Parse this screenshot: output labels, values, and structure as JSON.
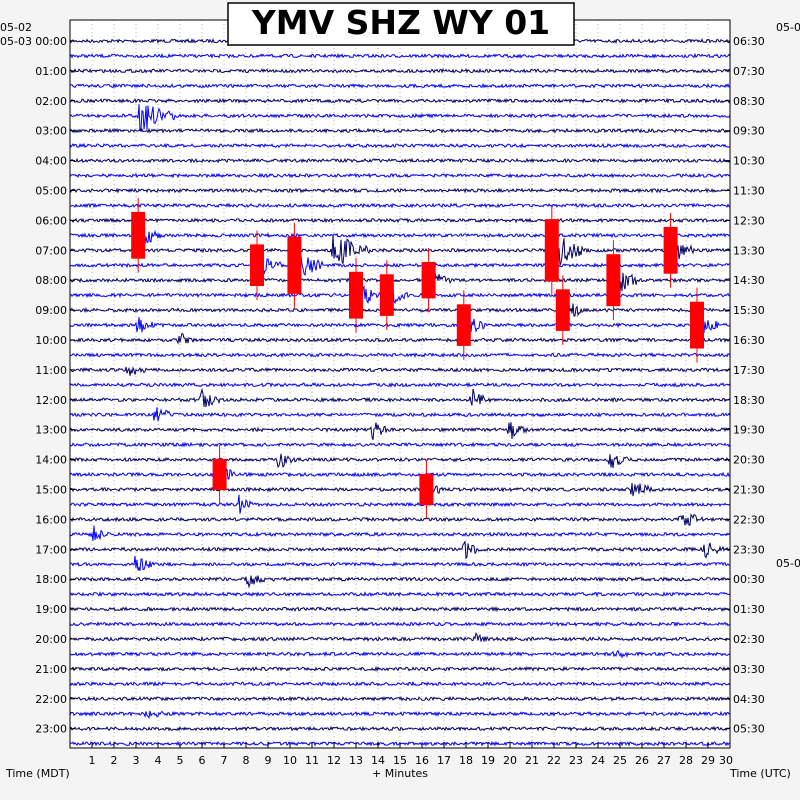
{
  "chart_data": {
    "type": "line",
    "title": "YMV SHZ WY 01",
    "xlabel": "+ Minutes",
    "ylabel_left": "Time (MDT)",
    "ylabel_right": "Time (UTC)",
    "left_date_top": "05-02",
    "left_date": "05-03",
    "right_date_top": "05-0",
    "right_date_mid": "05-0",
    "x_ticks": [
      "1",
      "2",
      "3",
      "4",
      "5",
      "6",
      "7",
      "8",
      "9",
      "10",
      "11",
      "12",
      "13",
      "14",
      "15",
      "16",
      "17",
      "18",
      "19",
      "20",
      "21",
      "22",
      "23",
      "24",
      "25",
      "26",
      "27",
      "28",
      "29",
      "30"
    ],
    "xlim": [
      0,
      30
    ],
    "left_hours": [
      "00:00",
      "01:00",
      "02:00",
      "03:00",
      "04:00",
      "05:00",
      "06:00",
      "07:00",
      "08:00",
      "09:00",
      "10:00",
      "11:00",
      "12:00",
      "13:00",
      "14:00",
      "15:00",
      "16:00",
      "17:00",
      "18:00",
      "19:00",
      "20:00",
      "21:00",
      "22:00",
      "23:00"
    ],
    "right_hours": [
      "06:30",
      "07:30",
      "08:30",
      "09:30",
      "10:30",
      "11:30",
      "12:30",
      "13:30",
      "14:30",
      "15:30",
      "16:30",
      "17:30",
      "18:30",
      "19:30",
      "20:30",
      "21:30",
      "22:30",
      "23:30",
      "00:30",
      "01:30",
      "02:30",
      "03:30",
      "04:30",
      "05:30"
    ],
    "trace_lines_per_hour": 2,
    "trace_colors": [
      "#000066",
      "#0000ff"
    ],
    "clip_color": "#ff0000",
    "grid": "dotted",
    "events": [
      {
        "line": 5,
        "minute": 3.2,
        "amp": 20,
        "dur": 1.6
      },
      {
        "line": 13,
        "minute": 3.1,
        "amp": 18,
        "dur": 1.0,
        "clip": true
      },
      {
        "line": 15,
        "minute": 8.5,
        "amp": 16,
        "dur": 1.1,
        "clip": true
      },
      {
        "line": 15,
        "minute": 10.2,
        "amp": 22,
        "dur": 1.3,
        "clip": true
      },
      {
        "line": 14,
        "minute": 12.0,
        "amp": 22,
        "dur": 1.6
      },
      {
        "line": 17,
        "minute": 13.0,
        "amp": 18,
        "dur": 1.2,
        "clip": true
      },
      {
        "line": 17,
        "minute": 14.4,
        "amp": 16,
        "dur": 1.0,
        "clip": true
      },
      {
        "line": 16,
        "minute": 16.3,
        "amp": 14,
        "dur": 1.0,
        "clip": true
      },
      {
        "line": 19,
        "minute": 17.9,
        "amp": 16,
        "dur": 1.0,
        "clip": true
      },
      {
        "line": 14,
        "minute": 21.9,
        "amp": 24,
        "dur": 1.6,
        "clip": true
      },
      {
        "line": 18,
        "minute": 22.4,
        "amp": 16,
        "dur": 1.0,
        "clip": true
      },
      {
        "line": 16,
        "minute": 24.7,
        "amp": 20,
        "dur": 1.2,
        "clip": true
      },
      {
        "line": 14,
        "minute": 27.3,
        "amp": 18,
        "dur": 1.1,
        "clip": true
      },
      {
        "line": 19,
        "minute": 28.5,
        "amp": 18,
        "dur": 1.0,
        "clip": true
      },
      {
        "line": 19,
        "minute": 3.1,
        "amp": 10,
        "dur": 0.8
      },
      {
        "line": 20,
        "minute": 5.0,
        "amp": 8,
        "dur": 0.6
      },
      {
        "line": 22,
        "minute": 2.6,
        "amp": 10,
        "dur": 0.8
      },
      {
        "line": 24,
        "minute": 6.0,
        "amp": 12,
        "dur": 0.8
      },
      {
        "line": 25,
        "minute": 3.9,
        "amp": 10,
        "dur": 0.8
      },
      {
        "line": 26,
        "minute": 13.8,
        "amp": 12,
        "dur": 0.6
      },
      {
        "line": 28,
        "minute": 9.5,
        "amp": 10,
        "dur": 0.8
      },
      {
        "line": 29,
        "minute": 6.8,
        "amp": 12,
        "dur": 0.8,
        "clip": true
      },
      {
        "line": 30,
        "minute": 16.2,
        "amp": 12,
        "dur": 0.8,
        "clip": true
      },
      {
        "line": 31,
        "minute": 7.7,
        "amp": 10,
        "dur": 0.6
      },
      {
        "line": 33,
        "minute": 1.1,
        "amp": 10,
        "dur": 0.8
      },
      {
        "line": 34,
        "minute": 17.9,
        "amp": 10,
        "dur": 0.8
      },
      {
        "line": 35,
        "minute": 3.0,
        "amp": 10,
        "dur": 0.8
      },
      {
        "line": 36,
        "minute": 8.1,
        "amp": 8,
        "dur": 0.8
      },
      {
        "line": 28,
        "minute": 24.6,
        "amp": 10,
        "dur": 0.8
      },
      {
        "line": 30,
        "minute": 25.6,
        "amp": 10,
        "dur": 1.0
      },
      {
        "line": 32,
        "minute": 27.8,
        "amp": 12,
        "dur": 1.0
      },
      {
        "line": 34,
        "minute": 28.9,
        "amp": 10,
        "dur": 0.8
      },
      {
        "line": 26,
        "minute": 20.0,
        "amp": 10,
        "dur": 0.8
      },
      {
        "line": 24,
        "minute": 18.3,
        "amp": 10,
        "dur": 0.8
      },
      {
        "line": 40,
        "minute": 18.4,
        "amp": 6,
        "dur": 0.6
      },
      {
        "line": 41,
        "minute": 24.8,
        "amp": 6,
        "dur": 0.6
      },
      {
        "line": 45,
        "minute": 3.5,
        "amp": 4,
        "dur": 1.0
      }
    ]
  }
}
